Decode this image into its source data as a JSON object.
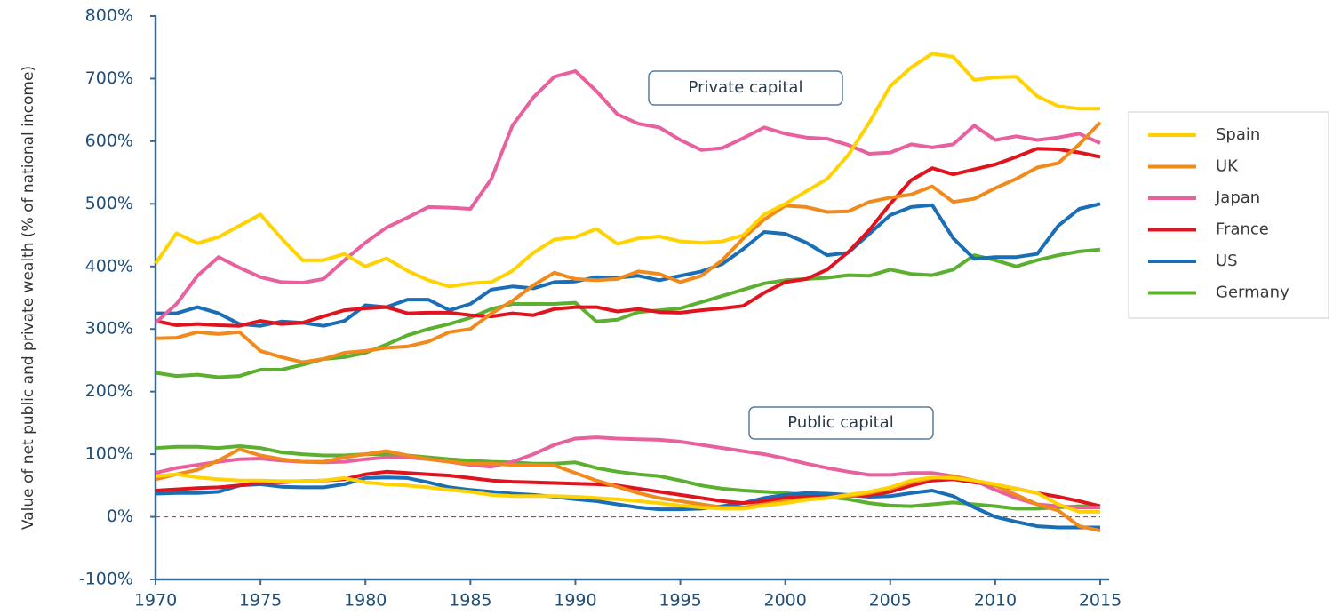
{
  "chart_data": {
    "type": "line",
    "y_label": "Value of net public and private wealth (% of national income)",
    "annotations": [
      "Private capital",
      "Public capital"
    ],
    "x": [
      1970,
      1971,
      1972,
      1973,
      1974,
      1975,
      1976,
      1977,
      1978,
      1979,
      1980,
      1981,
      1982,
      1983,
      1984,
      1985,
      1986,
      1987,
      1988,
      1989,
      1990,
      1991,
      1992,
      1993,
      1994,
      1995,
      1996,
      1997,
      1998,
      1999,
      2000,
      2001,
      2002,
      2003,
      2004,
      2005,
      2006,
      2007,
      2008,
      2009,
      2010,
      2011,
      2012,
      2013,
      2014,
      2015
    ],
    "xlim": [
      1970,
      2015
    ],
    "xticks": [
      1970,
      1975,
      1980,
      1985,
      1990,
      1995,
      2000,
      2005,
      2010,
      2015
    ],
    "ylim": [
      -100,
      800
    ],
    "yticks": [
      {
        "value": -100,
        "label": "-100%"
      },
      {
        "value": 0,
        "label": "0%"
      },
      {
        "value": 100,
        "label": "100%"
      },
      {
        "value": 200,
        "label": "200%"
      },
      {
        "value": 300,
        "label": "300%"
      },
      {
        "value": 400,
        "label": "400%"
      },
      {
        "value": 500,
        "label": "500%"
      },
      {
        "value": 600,
        "label": "600%"
      },
      {
        "value": 700,
        "label": "700%"
      },
      {
        "value": 800,
        "label": "800%"
      }
    ],
    "zero_line": {
      "value": 0,
      "color": "#e03040"
    },
    "series": [
      {
        "name": "Spain",
        "color": "#ffd200",
        "values": [
          405,
          453,
          437,
          447,
          465,
          483,
          445,
          410,
          410,
          420,
          400,
          413,
          393,
          378,
          368,
          373,
          375,
          393,
          422,
          443,
          447,
          460,
          436,
          445,
          448,
          440,
          438,
          440,
          450,
          483,
          500,
          520,
          540,
          578,
          630,
          688,
          718,
          740,
          735,
          698,
          702,
          703,
          672,
          656,
          652,
          652
        ],
        "public_values": [
          65,
          68,
          63,
          60,
          58,
          58,
          57,
          57,
          58,
          62,
          55,
          52,
          50,
          47,
          43,
          40,
          35,
          33,
          33,
          33,
          32,
          30,
          28,
          25,
          22,
          18,
          15,
          13,
          13,
          18,
          22,
          27,
          30,
          35,
          40,
          47,
          58,
          63,
          62,
          58,
          52,
          45,
          38,
          20,
          8,
          8
        ]
      },
      {
        "name": "UK",
        "color": "#f08a1c",
        "values": [
          285,
          286,
          295,
          292,
          295,
          265,
          255,
          247,
          252,
          262,
          265,
          270,
          272,
          280,
          295,
          300,
          325,
          345,
          370,
          390,
          380,
          378,
          380,
          392,
          388,
          375,
          385,
          410,
          445,
          475,
          497,
          495,
          487,
          488,
          503,
          510,
          515,
          528,
          503,
          508,
          525,
          540,
          558,
          565,
          595,
          630
        ],
        "public_values": [
          60,
          68,
          75,
          90,
          108,
          98,
          92,
          88,
          88,
          95,
          100,
          105,
          98,
          92,
          88,
          85,
          85,
          83,
          83,
          82,
          70,
          58,
          48,
          38,
          30,
          25,
          20,
          15,
          15,
          20,
          25,
          28,
          30,
          33,
          38,
          45,
          55,
          62,
          65,
          58,
          50,
          35,
          20,
          10,
          -15,
          -22
        ]
      },
      {
        "name": "Japan",
        "color": "#e8609e",
        "values": [
          310,
          340,
          385,
          415,
          398,
          383,
          375,
          374,
          380,
          410,
          438,
          462,
          478,
          495,
          494,
          492,
          540,
          625,
          670,
          703,
          712,
          680,
          643,
          628,
          622,
          602,
          586,
          589,
          605,
          622,
          612,
          606,
          604,
          594,
          580,
          582,
          595,
          590,
          595,
          625,
          602,
          608,
          602,
          606,
          612,
          597
        ],
        "public_values": [
          70,
          78,
          83,
          88,
          92,
          93,
          90,
          88,
          87,
          88,
          92,
          95,
          95,
          92,
          88,
          83,
          80,
          88,
          100,
          115,
          125,
          127,
          125,
          124,
          123,
          120,
          115,
          110,
          105,
          100,
          93,
          85,
          78,
          72,
          67,
          67,
          70,
          70,
          65,
          58,
          43,
          30,
          20,
          17,
          15,
          15
        ]
      },
      {
        "name": "France",
        "color": "#e0141e",
        "values": [
          313,
          306,
          308,
          306,
          305,
          313,
          308,
          310,
          320,
          330,
          333,
          335,
          325,
          326,
          326,
          322,
          320,
          325,
          322,
          332,
          335,
          335,
          328,
          332,
          327,
          326,
          330,
          333,
          337,
          358,
          375,
          380,
          395,
          423,
          458,
          500,
          538,
          557,
          547,
          555,
          563,
          575,
          588,
          587,
          582,
          575
        ],
        "public_values": [
          42,
          44,
          46,
          47,
          50,
          55,
          55,
          57,
          58,
          60,
          68,
          72,
          70,
          68,
          66,
          62,
          58,
          56,
          55,
          54,
          53,
          52,
          50,
          45,
          40,
          35,
          30,
          25,
          22,
          25,
          30,
          32,
          32,
          33,
          35,
          40,
          50,
          58,
          60,
          55,
          50,
          45,
          38,
          32,
          25,
          17
        ]
      },
      {
        "name": "US",
        "color": "#1a6eb5",
        "values": [
          325,
          325,
          335,
          325,
          308,
          305,
          312,
          310,
          305,
          313,
          338,
          335,
          347,
          347,
          330,
          340,
          363,
          368,
          365,
          375,
          376,
          383,
          382,
          385,
          378,
          385,
          392,
          404,
          428,
          455,
          452,
          438,
          418,
          422,
          452,
          482,
          495,
          498,
          445,
          412,
          415,
          415,
          420,
          465,
          492,
          500
        ],
        "public_values": [
          37,
          38,
          38,
          40,
          50,
          52,
          48,
          47,
          47,
          52,
          62,
          63,
          62,
          55,
          47,
          43,
          40,
          37,
          35,
          32,
          28,
          25,
          20,
          15,
          12,
          12,
          13,
          17,
          22,
          30,
          35,
          38,
          37,
          35,
          32,
          33,
          38,
          42,
          33,
          15,
          0,
          -8,
          -15,
          -17,
          -17,
          -17
        ]
      },
      {
        "name": "Germany",
        "color": "#5cb030",
        "values": [
          230,
          225,
          227,
          223,
          225,
          235,
          235,
          243,
          252,
          255,
          262,
          275,
          290,
          300,
          308,
          318,
          332,
          340,
          340,
          340,
          342,
          312,
          315,
          327,
          330,
          333,
          343,
          353,
          363,
          373,
          378,
          380,
          382,
          386,
          385,
          395,
          388,
          386,
          395,
          418,
          410,
          400,
          410,
          418,
          424,
          427
        ],
        "public_values": [
          110,
          112,
          112,
          110,
          113,
          110,
          103,
          100,
          98,
          98,
          100,
          100,
          98,
          95,
          92,
          90,
          88,
          87,
          85,
          85,
          87,
          78,
          72,
          68,
          65,
          58,
          50,
          45,
          42,
          40,
          38,
          35,
          32,
          28,
          22,
          18,
          17,
          20,
          23,
          20,
          17,
          13,
          13,
          15,
          17,
          17
        ]
      }
    ]
  }
}
